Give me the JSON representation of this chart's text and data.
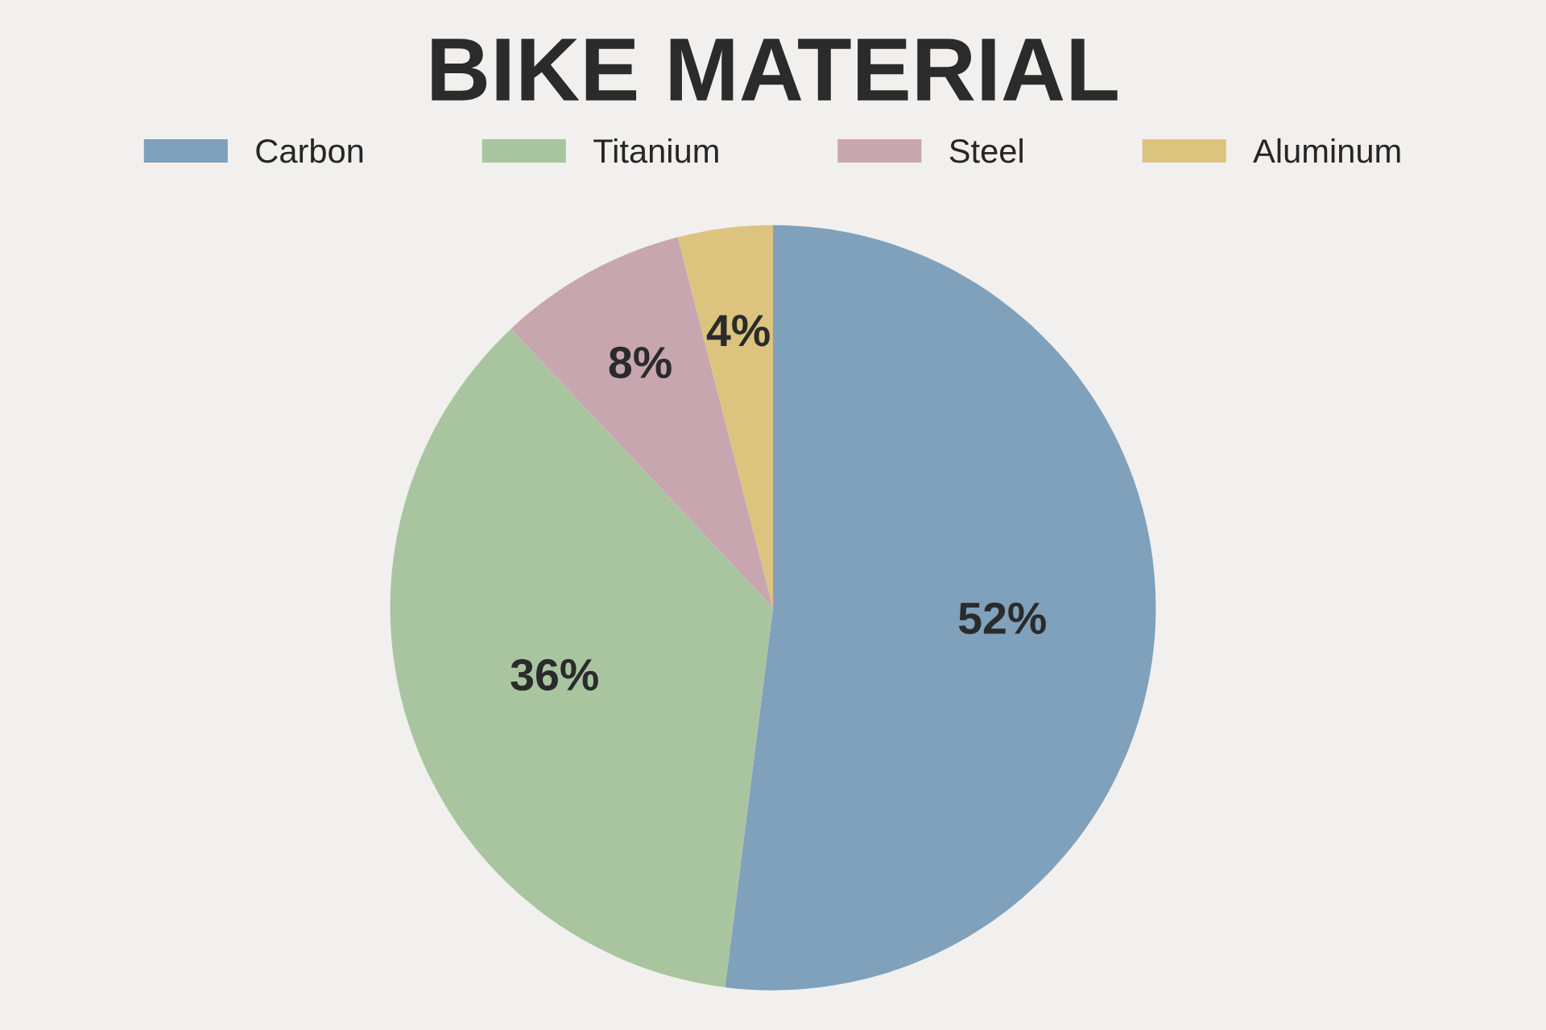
{
  "chart_data": {
    "type": "pie",
    "title": "BIKE MATERIAL",
    "categories": [
      "Carbon",
      "Titanium",
      "Steel",
      "Aluminum"
    ],
    "values": [
      52,
      36,
      8,
      4
    ],
    "colors": [
      "#7fa1bb",
      "#a8c5a0",
      "#c8a6b0",
      "#dcc47e"
    ],
    "value_labels": [
      "52%",
      "36%",
      "8%",
      "4%"
    ],
    "legend": "top"
  }
}
